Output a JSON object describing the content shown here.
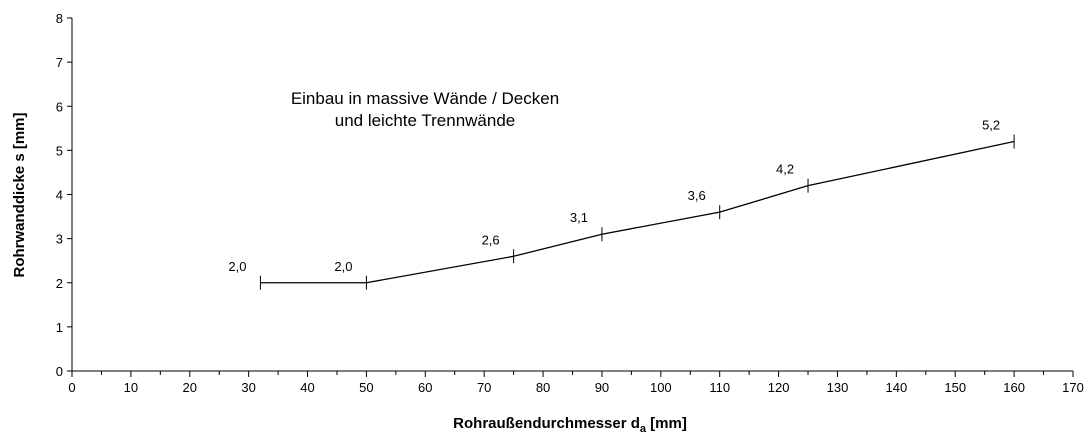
{
  "chart_data": {
    "type": "line",
    "annotation": [
      "Einbau in massive Wände / Decken",
      "und leichte Trennwände"
    ],
    "x_label": {
      "main": "Rohraußendurchmesser d",
      "sub": "a",
      "unit": " [mm]"
    },
    "y_label": "Rohrwanddicke s [mm]",
    "x": [
      32,
      50,
      75,
      90,
      110,
      125,
      160
    ],
    "series": [
      {
        "color": "#000000",
        "values": [
          2.0,
          2.0,
          2.6,
          3.1,
          3.6,
          4.2,
          5.2
        ],
        "value_labels": [
          "2,0",
          "2,0",
          "2,6",
          "3,1",
          "3,6",
          "4,2",
          "5,2"
        ]
      }
    ],
    "xlim": [
      0,
      170
    ],
    "xticks": [
      0,
      10,
      20,
      30,
      40,
      50,
      60,
      70,
      80,
      90,
      100,
      110,
      120,
      130,
      140,
      150,
      160,
      170
    ],
    "xminorticks": [
      5,
      15,
      25,
      35,
      45,
      55,
      65,
      75,
      85,
      95,
      105,
      115,
      125,
      135,
      145,
      155,
      165
    ],
    "ylim": [
      0,
      8
    ],
    "yticks": [
      0,
      1,
      2,
      3,
      4,
      5,
      6,
      7,
      8
    ]
  }
}
